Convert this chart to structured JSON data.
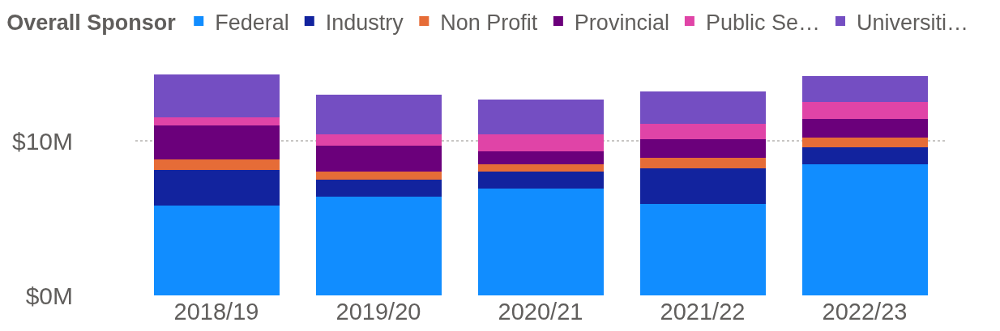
{
  "chart_data": {
    "type": "bar",
    "stacked": true,
    "legend_title": "Overall Sponsor",
    "legend": "top left",
    "grid": "y",
    "categories": [
      "2018/19",
      "2019/20",
      "2020/21",
      "2021/22",
      "2022/23"
    ],
    "ylim": [
      0,
      14.3
    ],
    "yticks": [
      {
        "value": 0,
        "label": "$0M"
      },
      {
        "value": 10,
        "label": "$10M"
      }
    ],
    "series": [
      {
        "name": "Federal",
        "color": "#118dff",
        "values": [
          5.8,
          6.4,
          6.9,
          5.9,
          8.5
        ]
      },
      {
        "name": "Industry",
        "color": "#12239e",
        "values": [
          2.3,
          1.1,
          1.1,
          2.3,
          1.1
        ]
      },
      {
        "name": "Non Profit",
        "color": "#e66c37",
        "values": [
          0.7,
          0.5,
          0.5,
          0.7,
          0.6
        ]
      },
      {
        "name": "Provincial",
        "color": "#6b007b",
        "values": [
          2.2,
          1.7,
          0.8,
          1.2,
          1.2
        ]
      },
      {
        "name": "Public Se…",
        "color": "#e044a7",
        "values": [
          0.5,
          0.7,
          1.1,
          1.0,
          1.1
        ]
      },
      {
        "name": "Universiti…",
        "color": "#744ec2",
        "values": [
          2.8,
          2.6,
          2.3,
          2.1,
          1.7
        ]
      }
    ]
  }
}
